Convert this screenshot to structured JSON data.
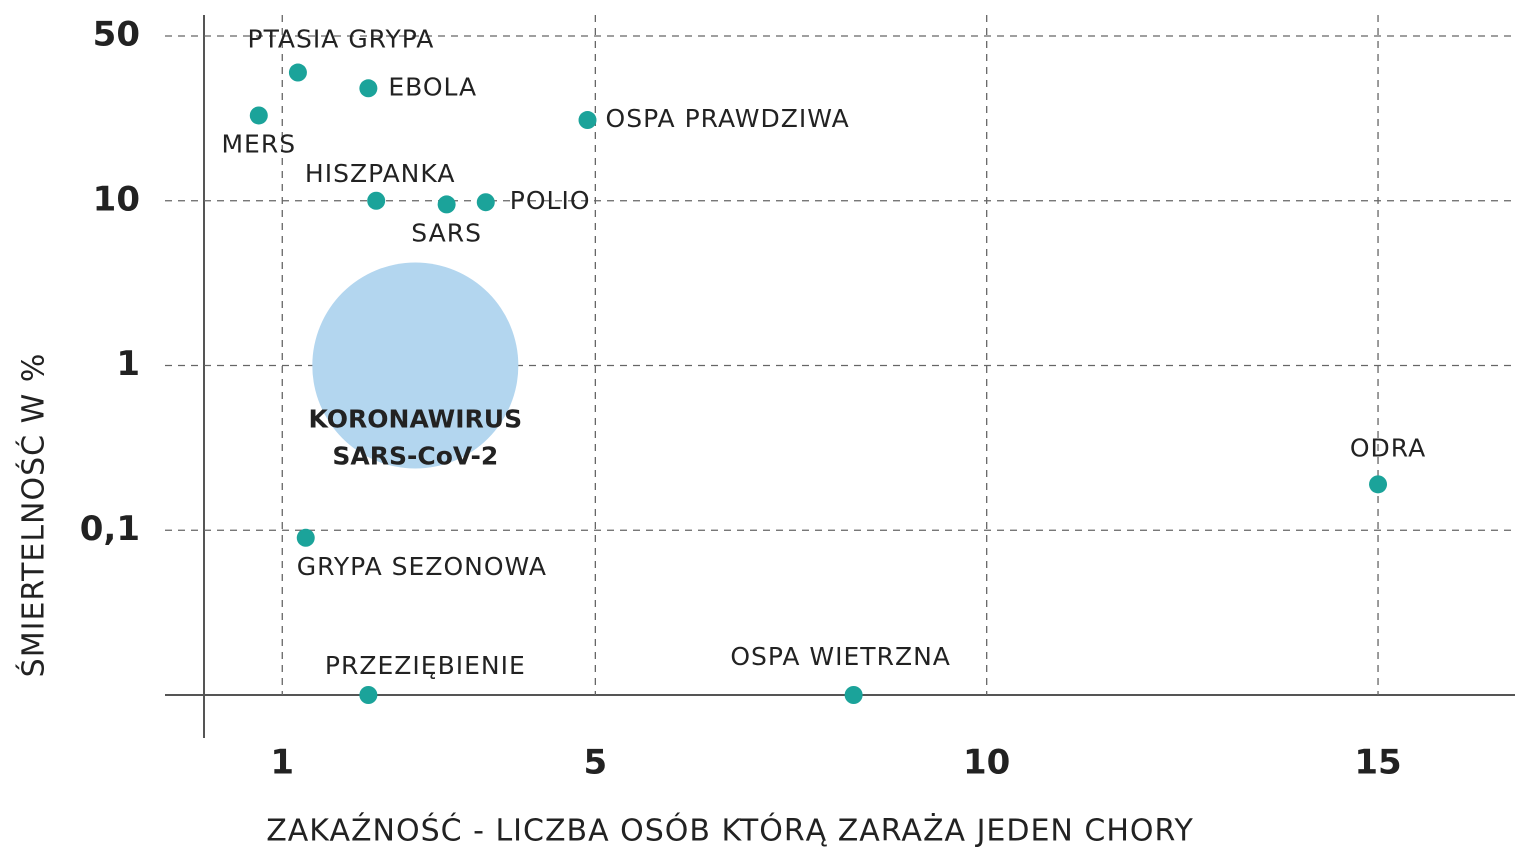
{
  "chart_data": {
    "type": "scatter",
    "log_y": true,
    "grid": true,
    "xlabel": "ZAKAŹNOŚĆ - LICZBA OSÓB KTÓRĄ ZARAŻA JEDEN CHORY",
    "ylabel": "ŚMIERTELNOŚĆ W %",
    "xlim": [
      0,
      16.75
    ],
    "xticks": [
      1,
      5,
      10,
      15
    ],
    "ylim": [
      0.01,
      50
    ],
    "yticks": [
      50,
      10,
      1,
      {
        "value": 0.1,
        "label": "0,1"
      }
    ],
    "color": "#1ba39a",
    "points": [
      {
        "label": "PTASIA GRYPA",
        "x": 1.2,
        "y": 35
      },
      {
        "label": "EBOLA",
        "x": 2.1,
        "y": 30
      },
      {
        "label": "MERS",
        "x": 0.7,
        "y": 23
      },
      {
        "label": "OSPA PRAWDZIWA",
        "x": 4.9,
        "y": 22
      },
      {
        "label": "HISZPANKA",
        "x": 2.2,
        "y": 10
      },
      {
        "label": "SARS",
        "x": 3.1,
        "y": 9.5
      },
      {
        "label": "POLIO",
        "x": 3.6,
        "y": 9.8
      },
      {
        "label": "ODRA",
        "x": 15,
        "y": 0.19
      },
      {
        "label": "GRYPA SEZONOWA",
        "x": 1.3,
        "y": 0.09
      },
      {
        "label": "PRZEZIĘBIENIE",
        "x": 2.1,
        "y": 0.01
      },
      {
        "label": "OSPA WIETRZNA",
        "x": 8.3,
        "y": 0.01
      }
    ],
    "highlight": {
      "label": [
        "KORONAWIRUS",
        "SARS-CoV-2"
      ],
      "x": 2.7,
      "y": 1,
      "color": "#b3d6ef"
    }
  }
}
